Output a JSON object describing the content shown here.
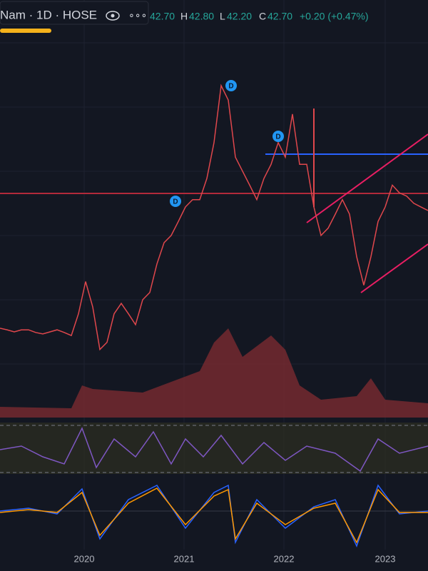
{
  "header": {
    "symbol": "Nam · 1D · HOSE",
    "open": "42.70",
    "high_label": "H",
    "high": "42.80",
    "low_label": "L",
    "low": "42.20",
    "close_label": "C",
    "close": "42.70",
    "change": "+0.20 (+0.47%)"
  },
  "chart": {
    "type": "line",
    "color": "#e0474c",
    "ylim": [
      2.1,
      83.3
    ],
    "values": [
      20.0,
      19.7,
      19.3,
      19.7,
      19.7,
      19.2,
      18.9,
      19.3,
      19.7,
      19.2,
      18.6,
      22.8,
      29.0,
      24.1,
      15.9,
      17.3,
      22.8,
      24.8,
      22.8,
      20.7,
      25.5,
      26.9,
      32.4,
      36.5,
      37.9,
      40.6,
      43.4,
      44.8,
      44.8,
      48.9,
      55.8,
      66.8,
      64.0,
      53.0,
      50.3,
      47.6,
      44.8,
      48.9,
      51.6,
      55.8,
      53.0,
      61.3,
      51.6,
      51.6,
      43.4,
      37.9,
      39.3,
      42.0,
      44.8,
      42.0,
      33.8,
      28.3,
      33.8,
      40.6,
      43.4,
      47.6,
      46.1,
      45.5,
      44.1,
      43.4,
      42.7
    ],
    "markers": [
      "D",
      "D",
      "D"
    ]
  },
  "x_axis": {
    "labels": [
      "2020",
      "2021",
      "2022",
      "2023"
    ]
  }
}
